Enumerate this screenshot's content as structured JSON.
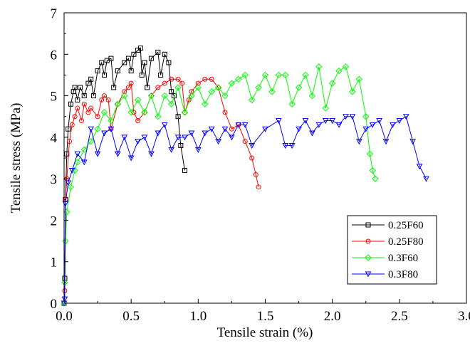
{
  "chart_data": {
    "type": "line",
    "title": "",
    "xlabel": "Tensile strain (%)",
    "ylabel": "Tensile stress (MPa)",
    "xlim": [
      0,
      3.0
    ],
    "ylim": [
      0,
      7
    ],
    "x_ticks": [
      0.0,
      0.5,
      1.0,
      1.5,
      2.0,
      2.5,
      3.0
    ],
    "x_tick_labels": [
      "0.0",
      "0.5",
      "1.0",
      "1.5",
      "2.0",
      "2.5",
      "3.0"
    ],
    "y_ticks": [
      0,
      1,
      2,
      3,
      4,
      5,
      6,
      7
    ],
    "y_tick_labels": [
      "0",
      "1",
      "2",
      "3",
      "4",
      "5",
      "6",
      "7"
    ],
    "grid": false,
    "legend_position": "lower-right",
    "series": [
      {
        "name": "0.25F60",
        "color": "#000000",
        "marker": "square",
        "x": [
          0,
          0.005,
          0.01,
          0.02,
          0.03,
          0.05,
          0.07,
          0.08,
          0.1,
          0.12,
          0.15,
          0.18,
          0.2,
          0.22,
          0.25,
          0.28,
          0.3,
          0.32,
          0.35,
          0.37,
          0.4,
          0.45,
          0.48,
          0.5,
          0.52,
          0.55,
          0.57,
          0.58,
          0.6,
          0.62,
          0.65,
          0.7,
          0.72,
          0.75,
          0.78,
          0.8,
          0.82,
          0.85,
          0.87,
          0.9
        ],
        "y": [
          0,
          0.6,
          2.5,
          3.6,
          4.2,
          4.8,
          5.1,
          5.2,
          4.9,
          5.2,
          5.0,
          5.3,
          5.4,
          5.0,
          5.6,
          5.8,
          5.5,
          5.85,
          5.9,
          5.2,
          5.6,
          5.8,
          5.9,
          5.6,
          6.0,
          6.1,
          6.15,
          5.5,
          5.8,
          5.2,
          5.9,
          6.05,
          5.5,
          6.0,
          5.8,
          5.1,
          5.0,
          4.5,
          3.8,
          3.2
        ]
      },
      {
        "name": "0.25F80",
        "color": "#ff0000",
        "marker": "circle",
        "x": [
          0,
          0.005,
          0.01,
          0.02,
          0.04,
          0.06,
          0.08,
          0.1,
          0.13,
          0.15,
          0.18,
          0.2,
          0.25,
          0.28,
          0.3,
          0.33,
          0.35,
          0.4,
          0.45,
          0.48,
          0.5,
          0.52,
          0.55,
          0.6,
          0.65,
          0.7,
          0.75,
          0.8,
          0.85,
          0.88,
          0.9,
          0.93,
          0.95,
          1.0,
          1.05,
          1.1,
          1.15,
          1.2,
          1.25,
          1.3,
          1.35,
          1.4,
          1.43,
          1.45
        ],
        "y": [
          0,
          0.3,
          2.5,
          3.0,
          3.9,
          4.3,
          4.5,
          4.7,
          4.4,
          4.8,
          4.6,
          4.7,
          4.5,
          4.9,
          5.0,
          4.9,
          4.2,
          4.8,
          5.1,
          5.2,
          5.3,
          4.6,
          4.4,
          4.6,
          5.0,
          5.2,
          5.3,
          5.4,
          5.4,
          5.3,
          4.6,
          4.9,
          5.1,
          5.3,
          5.4,
          5.4,
          5.2,
          4.6,
          4.2,
          4.3,
          3.9,
          3.5,
          3.1,
          2.8
        ]
      },
      {
        "name": "0.3F60",
        "color": "#00ff00",
        "marker": "diamond",
        "x": [
          0,
          0.005,
          0.01,
          0.02,
          0.05,
          0.08,
          0.1,
          0.15,
          0.2,
          0.25,
          0.3,
          0.35,
          0.4,
          0.45,
          0.5,
          0.55,
          0.6,
          0.65,
          0.7,
          0.75,
          0.8,
          0.85,
          0.9,
          0.95,
          1.0,
          1.05,
          1.1,
          1.15,
          1.2,
          1.25,
          1.3,
          1.35,
          1.4,
          1.45,
          1.5,
          1.55,
          1.6,
          1.65,
          1.7,
          1.75,
          1.8,
          1.85,
          1.9,
          1.95,
          2.0,
          2.05,
          2.1,
          2.15,
          2.2,
          2.25,
          2.28,
          2.3,
          2.32
        ],
        "y": [
          0,
          0.5,
          1.5,
          2.2,
          2.8,
          3.2,
          3.4,
          3.7,
          3.9,
          4.2,
          4.6,
          4.4,
          4.8,
          5.0,
          4.6,
          4.9,
          4.6,
          5.0,
          4.5,
          5.0,
          4.8,
          5.2,
          4.6,
          5.0,
          5.2,
          4.8,
          5.1,
          5.2,
          5.0,
          5.3,
          5.4,
          5.5,
          4.9,
          5.2,
          5.5,
          5.1,
          5.5,
          5.5,
          4.8,
          5.2,
          5.5,
          5.0,
          5.7,
          4.7,
          5.3,
          5.6,
          5.7,
          5.1,
          5.4,
          4.5,
          3.6,
          3.2,
          3.0
        ]
      },
      {
        "name": "0.3F80",
        "color": "#0000ff",
        "marker": "triangle-down",
        "x": [
          0,
          0.005,
          0.01,
          0.03,
          0.06,
          0.1,
          0.15,
          0.2,
          0.25,
          0.3,
          0.35,
          0.4,
          0.45,
          0.5,
          0.55,
          0.6,
          0.65,
          0.7,
          0.75,
          0.8,
          0.85,
          0.9,
          0.95,
          1.0,
          1.05,
          1.1,
          1.15,
          1.2,
          1.25,
          1.3,
          1.35,
          1.4,
          1.5,
          1.6,
          1.65,
          1.7,
          1.75,
          1.8,
          1.85,
          1.9,
          1.95,
          2.0,
          2.05,
          2.1,
          2.15,
          2.2,
          2.25,
          2.3,
          2.35,
          2.4,
          2.45,
          2.5,
          2.55,
          2.6,
          2.65,
          2.7
        ],
        "y": [
          0,
          0.1,
          2.4,
          2.9,
          3.2,
          3.6,
          3.4,
          4.2,
          3.6,
          4.1,
          4.2,
          3.6,
          4.0,
          3.5,
          3.9,
          4.0,
          3.6,
          4.1,
          4.3,
          3.7,
          4.0,
          4.0,
          4.1,
          3.7,
          4.1,
          4.2,
          3.9,
          4.2,
          4.0,
          4.3,
          4.3,
          3.8,
          4.2,
          4.4,
          3.8,
          3.8,
          4.2,
          4.4,
          4.1,
          4.3,
          4.4,
          4.4,
          4.3,
          4.5,
          4.5,
          3.9,
          4.2,
          4.3,
          4.4,
          3.9,
          4.3,
          4.4,
          4.5,
          3.9,
          3.3,
          3.0
        ]
      }
    ]
  }
}
